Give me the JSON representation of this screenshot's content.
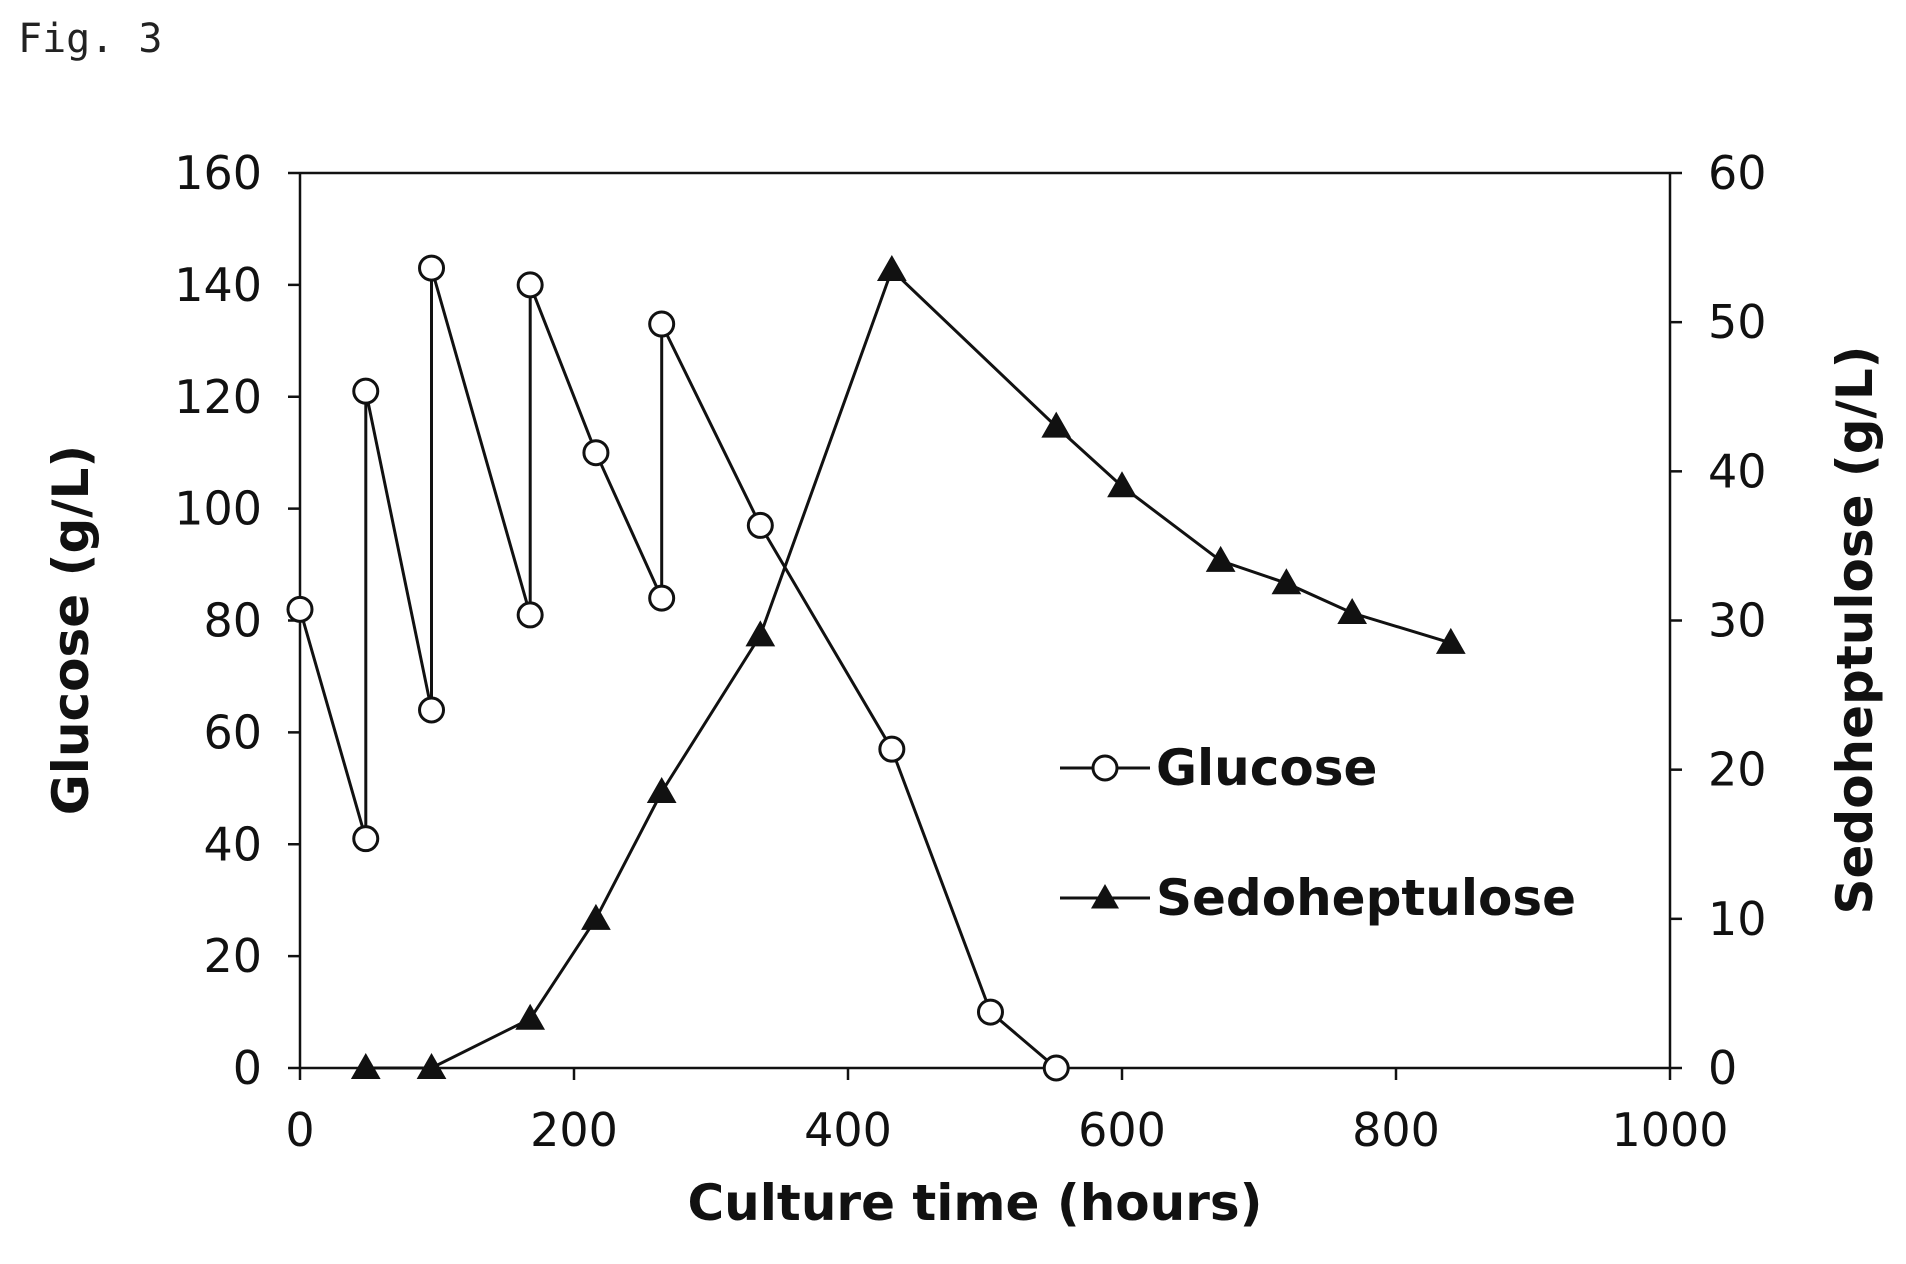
{
  "figure_label": "Fig. 3",
  "chart_data": {
    "type": "line",
    "title": "",
    "xlabel": "Culture time (hours)",
    "ylabel": "Glucose (g/L)",
    "y2label": "Sedoheptulose (g/L)",
    "xlim": [
      0,
      1000
    ],
    "ylim": [
      0,
      160
    ],
    "y2lim": [
      0,
      60
    ],
    "x_ticks": [
      0,
      200,
      400,
      600,
      800,
      1000
    ],
    "y_ticks": [
      0,
      20,
      40,
      60,
      80,
      100,
      120,
      140,
      160
    ],
    "y2_ticks": [
      0,
      10,
      20,
      30,
      40,
      50,
      60
    ],
    "grid": false,
    "legend_position": "center-right",
    "series": [
      {
        "name": "Glucose",
        "axis": "left",
        "marker": "open-circle",
        "color": "#111111",
        "x": [
          0,
          48,
          48,
          96,
          96,
          168,
          168,
          216,
          264,
          264,
          336,
          432,
          504,
          552
        ],
        "y": [
          82,
          41,
          121,
          64,
          143,
          81,
          140,
          110,
          84,
          133,
          97,
          57,
          10,
          0
        ]
      },
      {
        "name": "Sedoheptulose",
        "axis": "right",
        "marker": "filled-triangle",
        "color": "#111111",
        "x": [
          48,
          96,
          168,
          216,
          264,
          336,
          432,
          552,
          600,
          672,
          720,
          768,
          840
        ],
        "y": [
          0,
          0,
          3.3,
          10,
          18.5,
          29,
          53.5,
          43,
          39,
          34,
          32.5,
          30.5,
          28.5
        ]
      }
    ]
  }
}
